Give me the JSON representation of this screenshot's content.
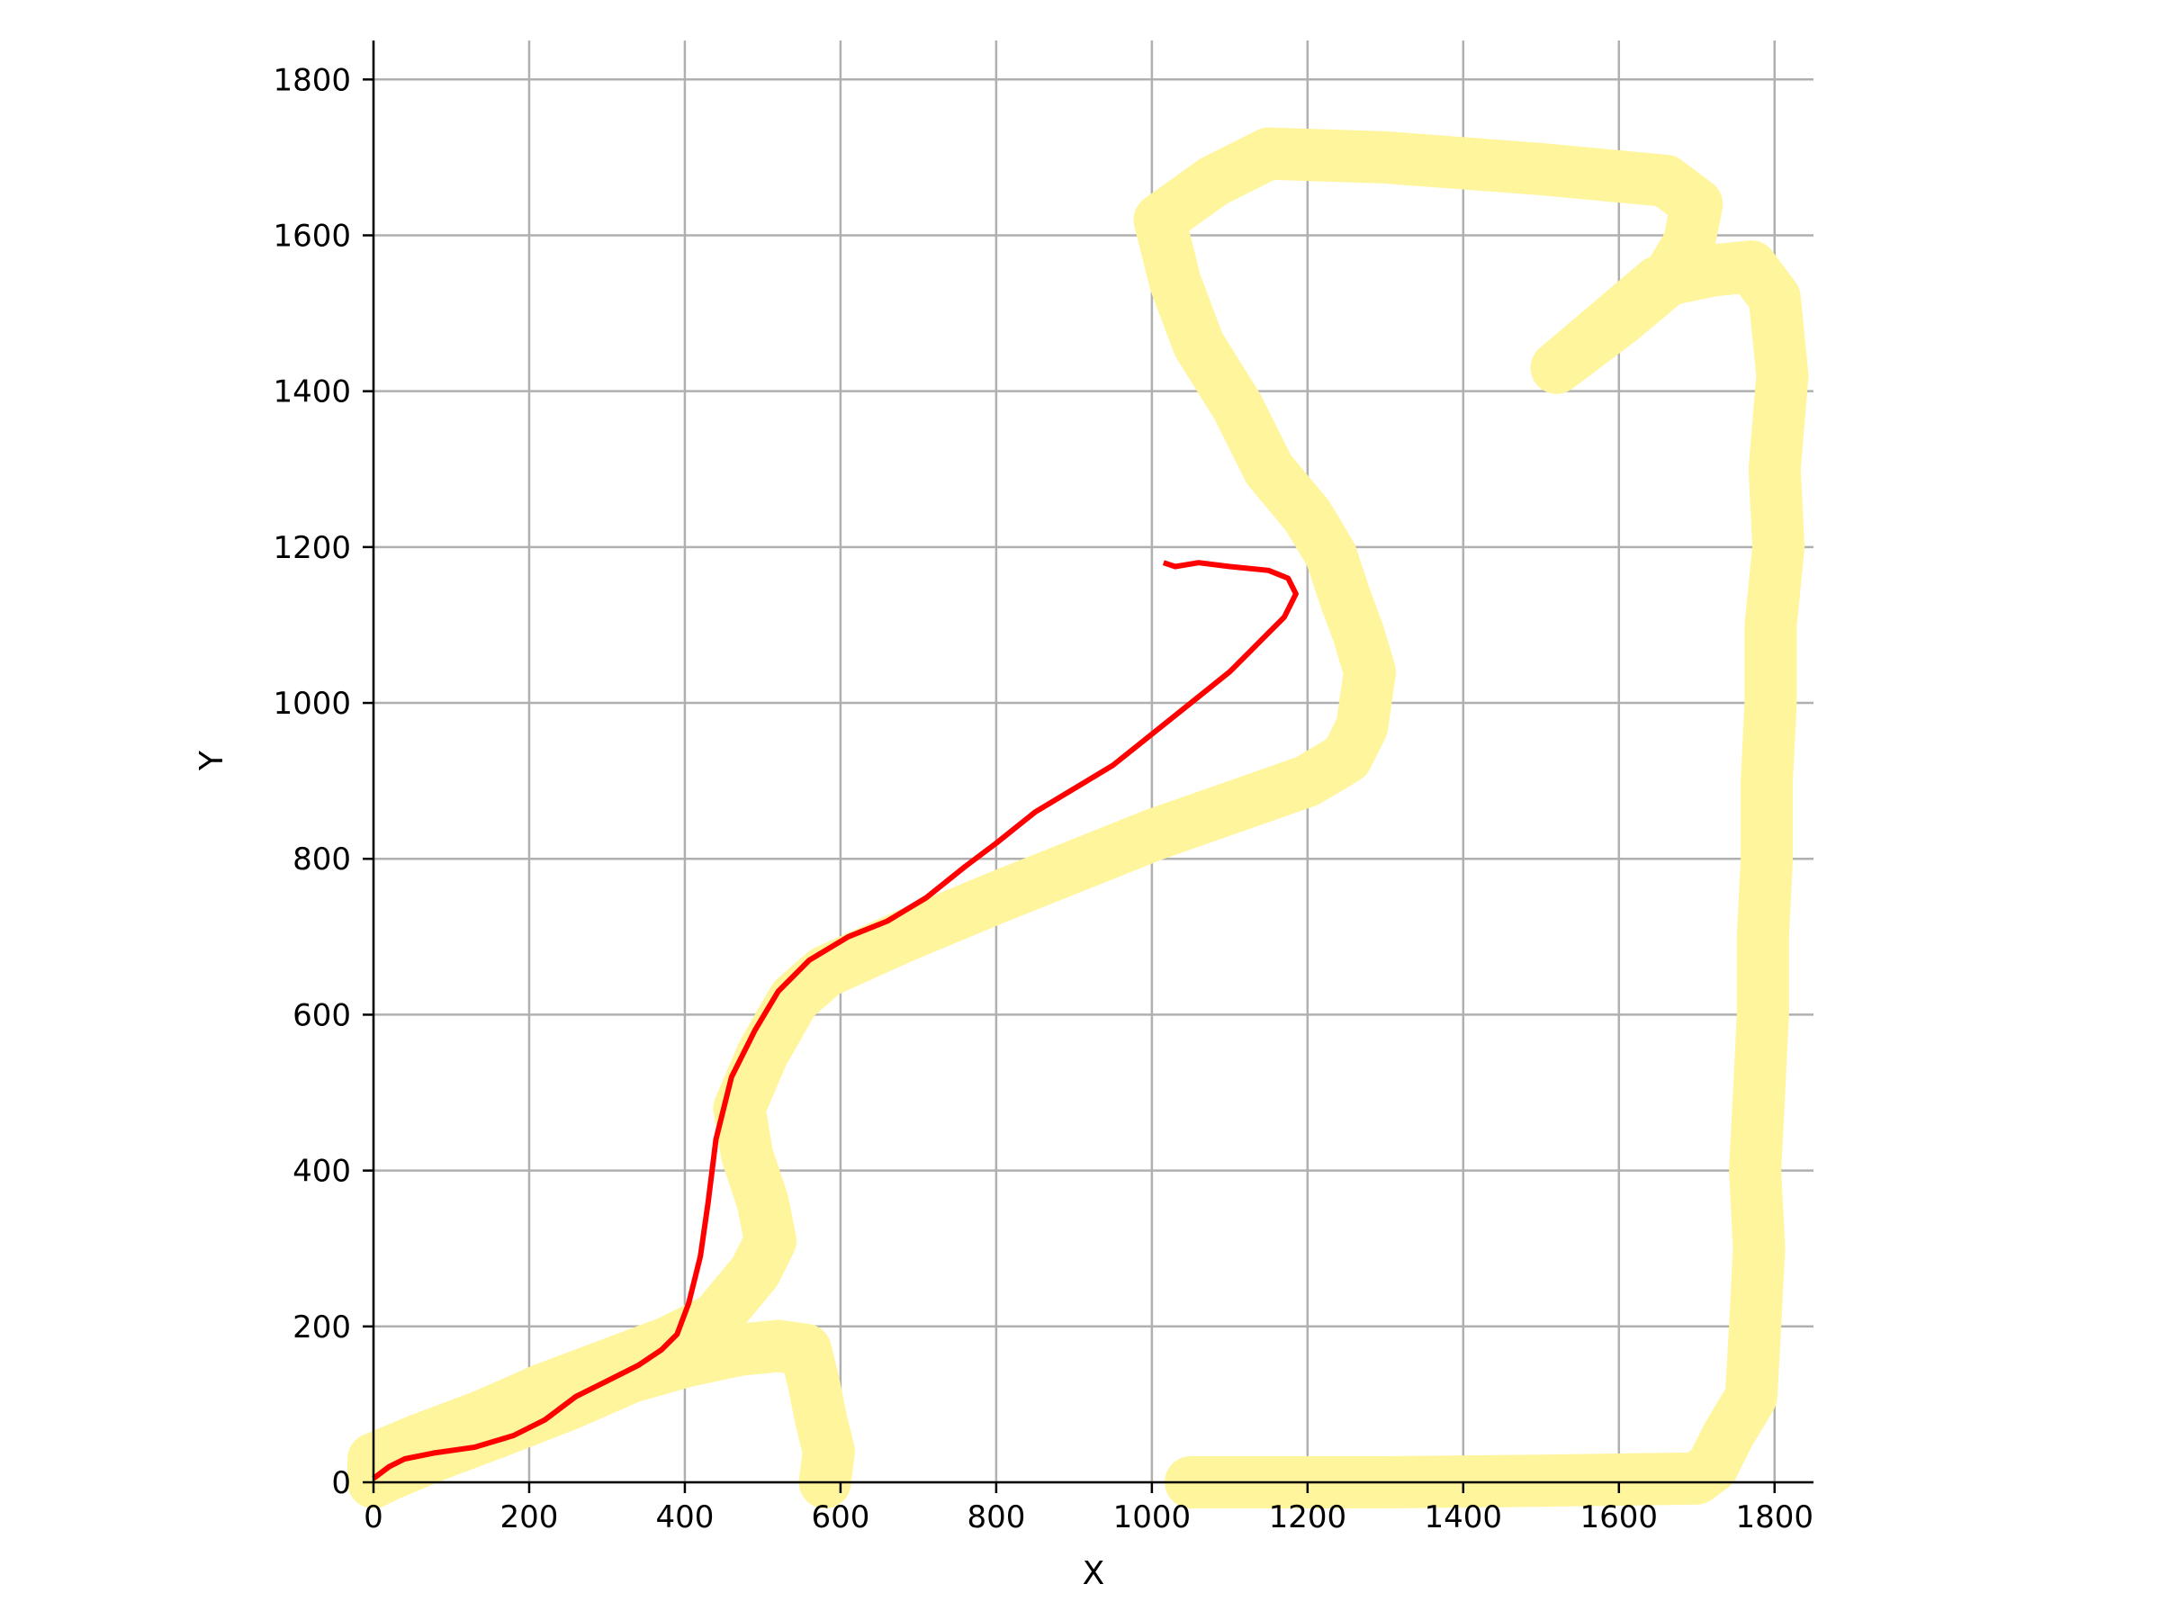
{
  "chart_data": {
    "type": "line",
    "title": "",
    "xlabel": "X",
    "ylabel": "Y",
    "xlim": [
      0,
      1850
    ],
    "ylim": [
      0,
      1850
    ],
    "xticks": [
      0,
      200,
      400,
      600,
      800,
      1000,
      1200,
      1400,
      1600,
      1800
    ],
    "yticks": [
      0,
      200,
      400,
      600,
      800,
      1000,
      1200,
      1400,
      1600,
      1800
    ],
    "grid": true,
    "legend": "none",
    "series": [
      {
        "style": "thick-band",
        "color": "#fff59d",
        "points": [
          [
            580,
            0
          ],
          [
            585,
            40
          ],
          [
            575,
            80
          ],
          [
            565,
            130
          ],
          [
            555,
            170
          ],
          [
            520,
            175
          ],
          [
            470,
            170
          ],
          [
            400,
            155
          ],
          [
            330,
            135
          ],
          [
            250,
            100
          ],
          [
            160,
            65
          ],
          [
            80,
            35
          ],
          [
            20,
            10
          ],
          [
            0,
            0
          ],
          [
            0,
            30
          ],
          [
            60,
            55
          ],
          [
            140,
            85
          ],
          [
            220,
            120
          ],
          [
            300,
            150
          ],
          [
            380,
            180
          ],
          [
            440,
            210
          ],
          [
            490,
            270
          ],
          [
            510,
            310
          ],
          [
            500,
            360
          ],
          [
            480,
            420
          ],
          [
            470,
            480
          ],
          [
            500,
            550
          ],
          [
            540,
            620
          ],
          [
            580,
            655
          ],
          [
            680,
            700
          ],
          [
            800,
            750
          ],
          [
            900,
            790
          ],
          [
            1000,
            830
          ],
          [
            1100,
            865
          ],
          [
            1200,
            900
          ],
          [
            1250,
            930
          ],
          [
            1270,
            970
          ],
          [
            1280,
            1040
          ],
          [
            1265,
            1090
          ],
          [
            1250,
            1130
          ],
          [
            1230,
            1190
          ],
          [
            1200,
            1240
          ],
          [
            1150,
            1300
          ],
          [
            1110,
            1380
          ],
          [
            1060,
            1460
          ],
          [
            1030,
            1540
          ],
          [
            1010,
            1620
          ],
          [
            1080,
            1670
          ],
          [
            1150,
            1705
          ],
          [
            1300,
            1700
          ],
          [
            1500,
            1685
          ],
          [
            1660,
            1670
          ],
          [
            1700,
            1640
          ],
          [
            1690,
            1590
          ],
          [
            1660,
            1540
          ],
          [
            1600,
            1490
          ],
          [
            1520,
            1430
          ],
          [
            1650,
            1540
          ],
          [
            1720,
            1555
          ],
          [
            1770,
            1560
          ],
          [
            1800,
            1520
          ],
          [
            1810,
            1420
          ],
          [
            1800,
            1300
          ],
          [
            1805,
            1200
          ],
          [
            1795,
            1100
          ],
          [
            1795,
            1000
          ],
          [
            1790,
            900
          ],
          [
            1790,
            800
          ],
          [
            1785,
            700
          ],
          [
            1785,
            600
          ],
          [
            1780,
            500
          ],
          [
            1775,
            400
          ],
          [
            1780,
            300
          ],
          [
            1775,
            200
          ],
          [
            1770,
            110
          ],
          [
            1740,
            60
          ],
          [
            1720,
            20
          ],
          [
            1700,
            5
          ],
          [
            1500,
            2
          ],
          [
            1300,
            0
          ],
          [
            1050,
            0
          ]
        ]
      },
      {
        "style": "line",
        "color": "#ff0000",
        "points": [
          [
            0,
            5
          ],
          [
            20,
            20
          ],
          [
            40,
            30
          ],
          [
            80,
            38
          ],
          [
            130,
            45
          ],
          [
            180,
            60
          ],
          [
            220,
            80
          ],
          [
            260,
            110
          ],
          [
            300,
            130
          ],
          [
            340,
            150
          ],
          [
            370,
            170
          ],
          [
            390,
            190
          ],
          [
            405,
            230
          ],
          [
            420,
            290
          ],
          [
            430,
            360
          ],
          [
            440,
            440
          ],
          [
            460,
            520
          ],
          [
            490,
            580
          ],
          [
            520,
            630
          ],
          [
            560,
            670
          ],
          [
            610,
            700
          ],
          [
            660,
            720
          ],
          [
            710,
            750
          ],
          [
            760,
            790
          ],
          [
            800,
            820
          ],
          [
            850,
            860
          ],
          [
            900,
            890
          ],
          [
            950,
            920
          ],
          [
            1000,
            960
          ],
          [
            1050,
            1000
          ],
          [
            1100,
            1040
          ],
          [
            1140,
            1080
          ],
          [
            1170,
            1110
          ],
          [
            1185,
            1140
          ],
          [
            1175,
            1160
          ],
          [
            1150,
            1170
          ],
          [
            1100,
            1175
          ],
          [
            1060,
            1180
          ],
          [
            1030,
            1175
          ],
          [
            1015,
            1180
          ]
        ]
      }
    ]
  }
}
